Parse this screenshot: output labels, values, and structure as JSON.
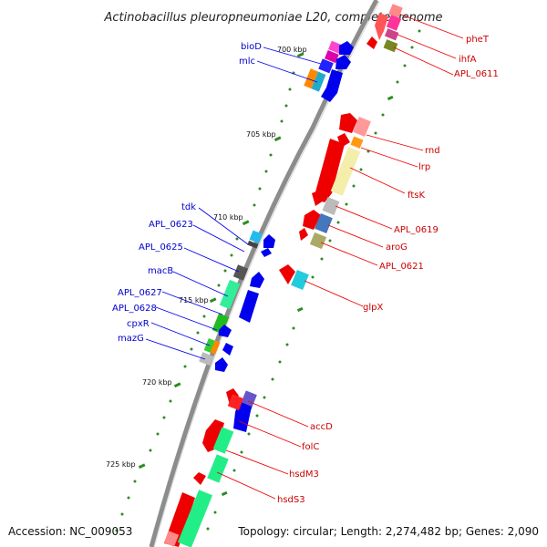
{
  "title": "Actinobacillus pleuropneumoniae L20, complete genome",
  "footer": {
    "accession": "Accession: NC_009053",
    "summary": "Topology: circular; Length: 2,274,482 bp; Genes: 2,090"
  },
  "ticks": [
    "700 kbp",
    "705 kbp",
    "710 kbp",
    "715 kbp",
    "720 kbp",
    "725 kbp"
  ],
  "labels_left": [
    "bioD",
    "mlc",
    "tdk",
    "APL_0623",
    "APL_0625",
    "macB",
    "APL_0627",
    "APL_0628",
    "cpxR",
    "mazG"
  ],
  "labels_right": [
    "pheT",
    "ihfA",
    "APL_0611",
    "rnd",
    "lrp",
    "ftsK",
    "APL_0619",
    "aroG",
    "APL_0621",
    "glpX",
    "accD",
    "folC",
    "hsdM3",
    "hsdS3"
  ],
  "colors": {
    "backbone": "#8c8c8c",
    "forward_strand": "#0000ee",
    "reverse_strand": "#ee0000",
    "tick": "#2e8b22",
    "label_left": "#0000cc",
    "label_right": "#cc0000"
  }
}
